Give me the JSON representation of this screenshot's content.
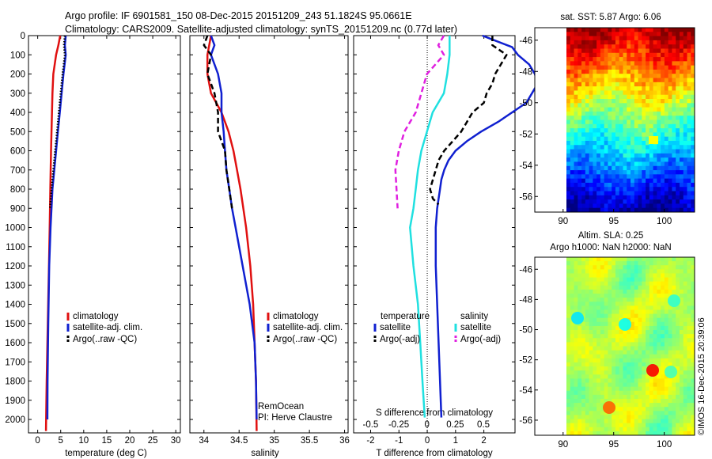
{
  "header": {
    "line1": "Argo profile: IF 6901581_150 08-Dec-2015 20151209_243 51.1824S 95.0661E",
    "line2": "Climatology: CARS2009. Satellite-adjusted climatology: synTS_20151209.nc (0.77d later)"
  },
  "colors": {
    "climatology": "#e01010",
    "satellite": "#1020d0",
    "argo": "#000000",
    "sat_salinity": "#20e0e0",
    "argo_salinity": "#e020e0"
  },
  "depth_ticks": [
    "0",
    "100",
    "200",
    "300",
    "400",
    "500",
    "600",
    "700",
    "800",
    "900",
    "1000",
    "1100",
    "1200",
    "1300",
    "1400",
    "1500",
    "1600",
    "1700",
    "1800",
    "1900",
    "2000"
  ],
  "chart_data": [
    {
      "type": "line",
      "xlabel": "temperature (deg C)",
      "xticks": [
        "0",
        "5",
        "10",
        "15",
        "20",
        "25",
        "30"
      ],
      "xlim": [
        -2,
        31
      ],
      "ylim": [
        0,
        2070
      ],
      "legend": [
        "climatology",
        "satellite-adj. clim.",
        "Argo(..raw -QC)"
      ],
      "legend_placement": "lower-right",
      "series": [
        {
          "name": "climatology",
          "depth": [
            0,
            50,
            100,
            200,
            300,
            400,
            500,
            600,
            800,
            1000,
            1200,
            1500,
            1800,
            2060
          ],
          "values": [
            4.9,
            4.5,
            4.0,
            3.4,
            3.2,
            3.1,
            3.0,
            2.9,
            2.75,
            2.6,
            2.45,
            2.2,
            1.95,
            1.8
          ]
        },
        {
          "name": "satellite-adj. clim.",
          "depth": [
            0,
            50,
            100,
            200,
            300,
            400,
            500,
            600,
            800,
            1000,
            1200,
            1500,
            1800,
            2000
          ],
          "values": [
            6.1,
            5.9,
            6.1,
            5.6,
            5.2,
            4.8,
            4.4,
            4.0,
            3.2,
            2.8,
            2.5,
            2.3,
            2.15,
            2.1
          ]
        },
        {
          "name": "Argo(..raw -QC)",
          "depth": [
            0,
            50,
            100,
            200,
            300,
            400,
            500,
            600,
            700,
            800,
            900
          ],
          "values": [
            5.9,
            5.7,
            5.9,
            5.4,
            5.0,
            4.6,
            4.2,
            3.8,
            3.4,
            3.0,
            2.7
          ]
        }
      ]
    },
    {
      "type": "line",
      "xlabel": "salinity",
      "xticks": [
        "34",
        "34.5",
        "35",
        "35.5",
        "36"
      ],
      "xlim": [
        33.8,
        36.05
      ],
      "ylim": [
        0,
        2070
      ],
      "legend": [
        "climatology",
        "satellite-adj. clim.",
        "Argo(..raw -QC)"
      ],
      "legend_placement": "lower-right",
      "annotations": [
        "RemOcean",
        "PI: Herve Claustre"
      ],
      "series": [
        {
          "name": "climatology",
          "depth": [
            0,
            100,
            200,
            300,
            400,
            500,
            600,
            700,
            800,
            1000,
            1200,
            1400,
            1600,
            1800,
            2060
          ],
          "values": [
            34.1,
            34.05,
            34.05,
            34.1,
            34.25,
            34.35,
            34.42,
            34.47,
            34.52,
            34.6,
            34.66,
            34.7,
            34.72,
            34.74,
            34.75
          ]
        },
        {
          "name": "satellite-adj. clim.",
          "depth": [
            0,
            50,
            100,
            200,
            300,
            400,
            500,
            600,
            700,
            800,
            900,
            1000,
            1200,
            1400,
            1600,
            1800,
            2000
          ],
          "values": [
            34.1,
            34.15,
            34.1,
            34.2,
            34.25,
            34.25,
            34.28,
            34.3,
            34.32,
            34.36,
            34.4,
            34.45,
            34.55,
            34.65,
            34.72,
            34.74,
            34.75
          ]
        },
        {
          "name": "Argo(..raw -QC)",
          "depth": [
            0,
            50,
            100,
            200,
            300,
            400,
            500,
            600,
            700,
            800,
            900
          ],
          "values": [
            34.05,
            34.0,
            34.1,
            34.05,
            34.15,
            34.2,
            34.2,
            34.3,
            34.32,
            34.36,
            34.4
          ]
        }
      ]
    },
    {
      "type": "line",
      "xlabel": "T difference from climatology",
      "xticks_bottom": [
        "-2",
        "-1",
        "0",
        "1",
        "2"
      ],
      "xlim_T": [
        -2.6,
        3.1
      ],
      "xlabel_top": "S difference from climatology",
      "xticks_top": [
        "-0.5",
        "-0.25",
        "0",
        "0.25",
        "0.5"
      ],
      "xlim_S": [
        -0.65,
        0.78
      ],
      "ylim": [
        0,
        2070
      ],
      "legend_titles": [
        "temperature",
        "salinity"
      ],
      "legend": [
        "satellite",
        "Argo(-adj)",
        "satellite",
        "Argo(-adj)"
      ],
      "series": [
        {
          "name": "satellite",
          "axis": "T",
          "depth": [
            0,
            20,
            60,
            100,
            150,
            200,
            250,
            300,
            350,
            400,
            450,
            500,
            550,
            600,
            650,
            700,
            750,
            800,
            850,
            900,
            1000,
            1200,
            1400,
            1600,
            1800,
            1990
          ],
          "values": [
            1.95,
            2.3,
            3.0,
            3.2,
            3.6,
            3.8,
            3.9,
            3.7,
            3.5,
            3.0,
            2.5,
            1.9,
            1.4,
            1.0,
            0.75,
            0.6,
            0.5,
            0.45,
            0.4,
            0.35,
            0.3,
            0.3,
            0.35,
            0.4,
            0.45,
            0.5
          ]
        },
        {
          "name": "Argo(-adj)",
          "axis": "T",
          "depth": [
            0,
            50,
            100,
            150,
            200,
            250,
            300,
            350,
            400,
            450,
            500,
            550,
            600,
            650,
            700,
            750,
            800,
            850,
            880
          ],
          "values": [
            2.3,
            2.3,
            2.8,
            2.6,
            2.4,
            2.3,
            2.1,
            2.0,
            1.6,
            1.4,
            1.2,
            0.9,
            0.6,
            0.4,
            0.3,
            0.2,
            0.1,
            0.2,
            0.4
          ]
        },
        {
          "name": "satellite",
          "axis": "S",
          "depth": [
            0,
            100,
            200,
            300,
            400,
            500,
            600,
            700,
            800,
            900,
            1000,
            1200,
            1400,
            1600,
            1800,
            1990
          ],
          "values": [
            0.2,
            0.2,
            0.18,
            0.15,
            0.05,
            0.0,
            -0.05,
            -0.08,
            -0.1,
            -0.12,
            -0.15,
            -0.12,
            -0.08,
            -0.06,
            -0.04,
            -0.02
          ]
        },
        {
          "name": "Argo(-adj)",
          "axis": "S",
          "depth": [
            0,
            50,
            100,
            200,
            300,
            400,
            500,
            600,
            700,
            800,
            900
          ],
          "values": [
            0.15,
            0.1,
            0.15,
            0.0,
            -0.05,
            -0.1,
            -0.2,
            -0.25,
            -0.28,
            -0.27,
            -0.26
          ]
        }
      ]
    },
    {
      "type": "heatmap",
      "title": "sat. SST: 5.87  Argo: 6.06",
      "xticks": [
        "90",
        "95",
        "100"
      ],
      "yticks": [
        "-46",
        "-48",
        "-50",
        "-52",
        "-54",
        "-56"
      ],
      "xlim": [
        87.2,
        103.0
      ],
      "ylim": [
        -57.0,
        -45.2
      ],
      "colormap": "jet"
    },
    {
      "type": "heatmap",
      "title_lines": [
        "Altim. SLA: 0.25",
        "Argo h1000: NaN h2000: NaN"
      ],
      "xticks": [
        "90",
        "95",
        "100"
      ],
      "yticks": [
        "-46",
        "-48",
        "-50",
        "-52",
        "-54",
        "-56"
      ],
      "xlim": [
        87.2,
        103.0
      ],
      "ylim": [
        -57.0,
        -45.2
      ],
      "colormap": "jet"
    }
  ],
  "footer": {
    "credit": "©IMOS 16-Dec-2015 20:39:06"
  }
}
